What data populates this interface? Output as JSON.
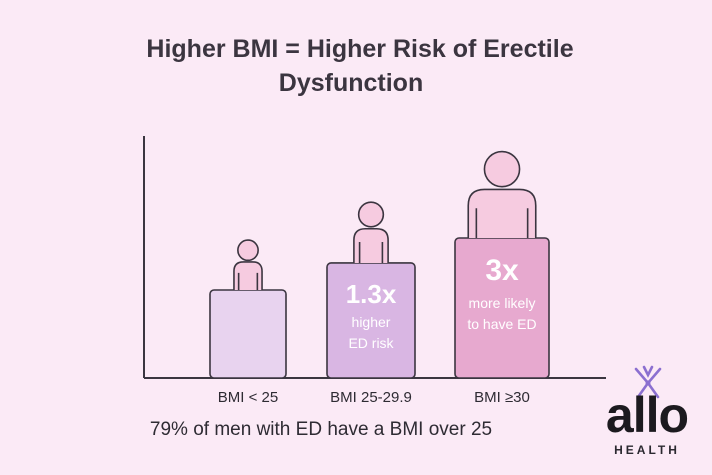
{
  "title": {
    "line1": "Higher BMI = Higher Risk of Erectile",
    "line2": "Dysfunction"
  },
  "chart_data": {
    "type": "bar",
    "categories": [
      "BMI < 25",
      "BMI 25-29.9",
      "BMI ≥30"
    ],
    "values": [
      1,
      1.3,
      3
    ],
    "bar_labels": [
      {
        "main": "",
        "sub": []
      },
      {
        "main": "1.3x",
        "sub": [
          "higher",
          "ED risk"
        ]
      },
      {
        "main": "3x",
        "sub": [
          "more likely",
          "to have ED"
        ]
      }
    ],
    "colors": [
      "#e8d3ef",
      "#d9b6e3",
      "#e7a9cf"
    ],
    "figure_color": "#f6cbe0"
  },
  "footnote": "79% of men with ED have a BMI over 25",
  "logo": {
    "word": "allo",
    "sub": "HEALTH",
    "accent": "#8b6fd0"
  }
}
